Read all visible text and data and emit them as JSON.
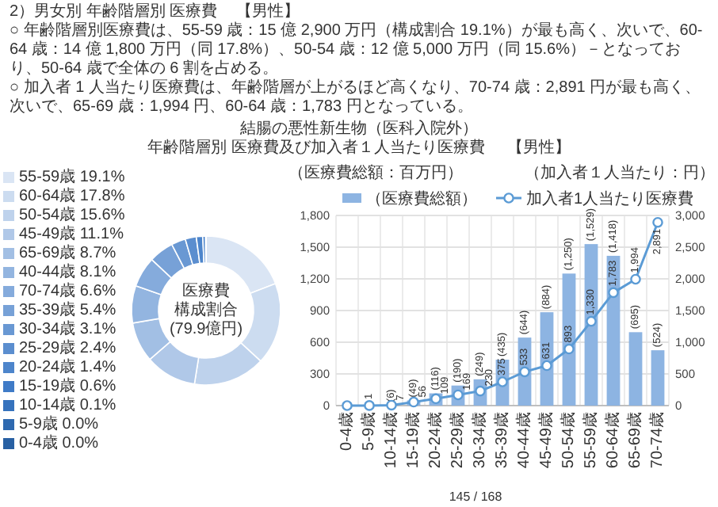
{
  "chart_data": [
    {
      "type": "bar",
      "title": "結腸の悪性新生物（医科入院外）",
      "subtitle": "年齢階層別 医療費及び加入者１人当たり医療費",
      "categories": [
        "0-4歳",
        "5-9歳",
        "10-14歳",
        "15-19歳",
        "20-24歳",
        "25-29歳",
        "30-34歳",
        "35-39歳",
        "40-44歳",
        "45-49歳",
        "50-54歳",
        "55-59歳",
        "60-64歳",
        "65-69歳",
        "70-74歳"
      ],
      "series": [
        {
          "name": "（医療費総額）",
          "type": "bar",
          "color": "#8db4e2",
          "values": [
            0,
            0,
            6,
            49,
            116,
            190,
            249,
            435,
            644,
            884,
            1250,
            1529,
            1418,
            695,
            524
          ],
          "value_labels": [
            null,
            null,
            "(6)",
            "(49)",
            "(116)",
            "(190)",
            "(249)",
            "(435)",
            "(644)",
            "(884)",
            "(1,250)",
            "(1,529)",
            "(1,418)",
            "(695)",
            "(524)"
          ]
        },
        {
          "name": "加入者1人当たり医療費",
          "type": "line",
          "axis": "y2",
          "color": "#5b9bd5",
          "marker": "circle",
          "values": [
            0,
            1,
            7,
            56,
            109,
            169,
            230,
            375,
            533,
            631,
            893,
            1330,
            1783,
            1994,
            2891
          ],
          "value_labels": [
            null,
            "1",
            "7",
            "56",
            "109",
            "169",
            "230",
            "375",
            "533",
            "631",
            "893",
            "1,330",
            "1,783",
            "1,994",
            "2,891"
          ]
        }
      ],
      "ylabel": "（医療費総額：百万円）",
      "y2label": "（加入者１人当たり：円）",
      "ylim": [
        0,
        1800
      ],
      "yticks": [
        0,
        300,
        600,
        900,
        {
          "value": 1200,
          "label": "1,200"
        },
        {
          "value": 1500,
          "label": "1,500"
        },
        {
          "value": 1800,
          "label": "1,800"
        }
      ],
      "y2lim": [
        0,
        3000
      ],
      "y2ticks": [
        0,
        500,
        {
          "value": 1000,
          "label": "1,000"
        },
        {
          "value": 1500,
          "label": "1,500"
        },
        {
          "value": 2000,
          "label": "2,000"
        },
        {
          "value": 2500,
          "label": "2,500"
        },
        {
          "value": 3000,
          "label": "3,000"
        }
      ],
      "grid": true,
      "legend": "top",
      "annotations": [
        "2）男女別 年齢階層別 医療費",
        "【男性】",
        "○ 年齢階層別医療費は、55-59 歳：15 億 2,900 万円（構成割合 19.1%）が最も高く、次いで、60-64 歳：14 億 1,800 万円（同 17.8%）、50-54 歳：12 億 5,000 万円（同 15.6%）－となっており、50-64 歳で全体の 6 割を占める。",
        "○ 加入者 1 人当たり医療費は、年齢階層が上がるほど高くなり、70-74 歳：2,891 円が最も高く、次いで、65-69 歳：1,994 円、60-64 歳：1,783 円となっている。",
        "【男性】",
        "145 / 168"
      ]
    },
    {
      "type": "donut",
      "categories": [
        "55-59歳",
        "60-64歳",
        "50-54歳",
        "45-49歳",
        "65-69歳",
        "40-44歳",
        "70-74歳",
        "35-39歳",
        "30-34歳",
        "25-29歳",
        "20-24歳",
        "15-19歳",
        "10-14歳",
        "5-9歳",
        "0-4歳"
      ],
      "values": [
        19.1,
        17.8,
        15.6,
        11.1,
        8.7,
        8.1,
        6.6,
        5.4,
        3.1,
        2.4,
        1.4,
        0.6,
        0.1,
        0.0,
        0.0
      ],
      "value_labels": [
        "19.1%",
        "17.8%",
        "15.6%",
        "11.1%",
        "8.7%",
        "8.1%",
        "6.6%",
        "5.4%",
        "3.1%",
        "2.4%",
        "1.4%",
        "0.6%",
        "0.1%",
        "0.0%",
        "0.0%"
      ],
      "legend": "left",
      "colors": [
        "#dae5f4",
        "#ccdcf0",
        "#bed2ec",
        "#b0c8e8",
        "#a2bfe4",
        "#93b5e0",
        "#85abdc",
        "#77a1d7",
        "#6998d3",
        "#5b8ecf",
        "#4d85cb",
        "#3f7bc7",
        "#3572bd",
        "#2e69b0",
        "#2860a3"
      ],
      "annotations": [
        "医療費",
        "構成割合",
        "(79.9億円)"
      ]
    }
  ]
}
